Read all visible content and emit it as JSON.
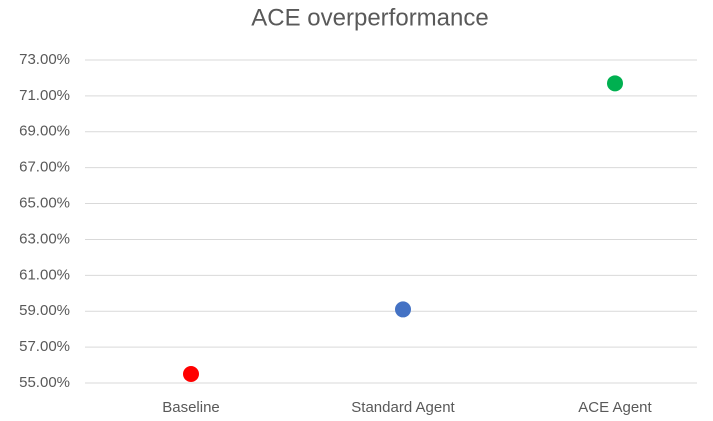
{
  "chart_data": {
    "type": "dot",
    "title": "ACE overperformance",
    "categories": [
      "Baseline",
      "Standard Agent",
      "ACE Agent"
    ],
    "values": [
      55.5,
      59.1,
      71.7
    ],
    "colors": [
      "#ff0000",
      "#4472c4",
      "#00b050"
    ],
    "ylim": [
      55,
      73
    ],
    "yticks": [
      {
        "value": 55,
        "label": "55.00%"
      },
      {
        "value": 57,
        "label": "57.00%"
      },
      {
        "value": 59,
        "label": "59.00%"
      },
      {
        "value": 61,
        "label": "61.00%"
      },
      {
        "value": 63,
        "label": "63.00%"
      },
      {
        "value": 65,
        "label": "65.00%"
      },
      {
        "value": 67,
        "label": "67.00%"
      },
      {
        "value": 69,
        "label": "69.00%"
      },
      {
        "value": 71,
        "label": "71.00%"
      },
      {
        "value": 73,
        "label": "73.00%"
      }
    ],
    "grid": true
  }
}
